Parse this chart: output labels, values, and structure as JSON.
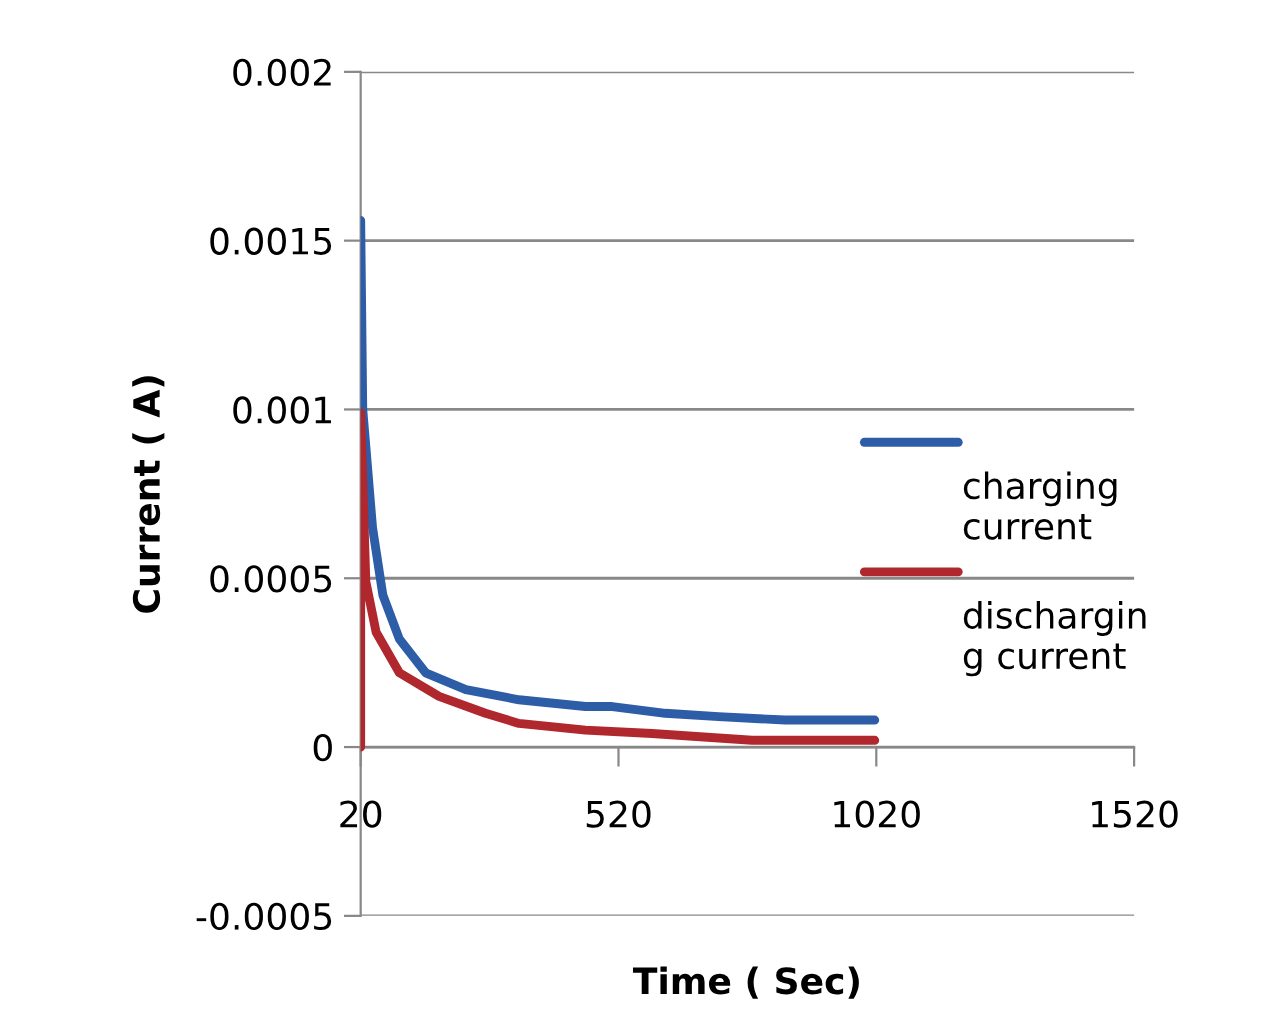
{
  "chart_data": {
    "type": "line",
    "xlabel": "Time ( Sec)",
    "ylabel": "Current ( A)",
    "xlim": [
      20,
      1520
    ],
    "xticks": [
      20,
      520,
      1020,
      1520
    ],
    "ylim": [
      -0.0005,
      0.002
    ],
    "yticks": [
      -0.0005,
      0,
      0.0005,
      0.001,
      0.0015,
      0.002
    ],
    "grid": "y",
    "legend": "right",
    "line_style": "solid",
    "marker": "none",
    "series": [
      {
        "name": "charging\ncurrent",
        "color": "#2e5da8",
        "x": [
          20,
          24,
          43,
          63,
          95,
          146,
          224,
          327,
          456,
          508,
          611,
          714,
          843,
          1017
        ],
        "values": [
          0.00156,
          0.001,
          0.00065,
          0.00045,
          0.00032,
          0.00022,
          0.00017,
          0.00014,
          0.00012,
          0.00012,
          0.0001,
          9e-05,
          8e-05,
          8e-05
        ]
      },
      {
        "name": "dischargin\ng current",
        "color": "#b0282d",
        "x": [
          20,
          20,
          30,
          50,
          95,
          172,
          262,
          327,
          456,
          585,
          779,
          946,
          1017
        ],
        "values": [
          0,
          0.00099,
          0.00049,
          0.00034,
          0.00022,
          0.00015,
          0.0001,
          7e-05,
          5e-05,
          4e-05,
          2e-05,
          2e-05,
          2e-05
        ]
      }
    ]
  }
}
